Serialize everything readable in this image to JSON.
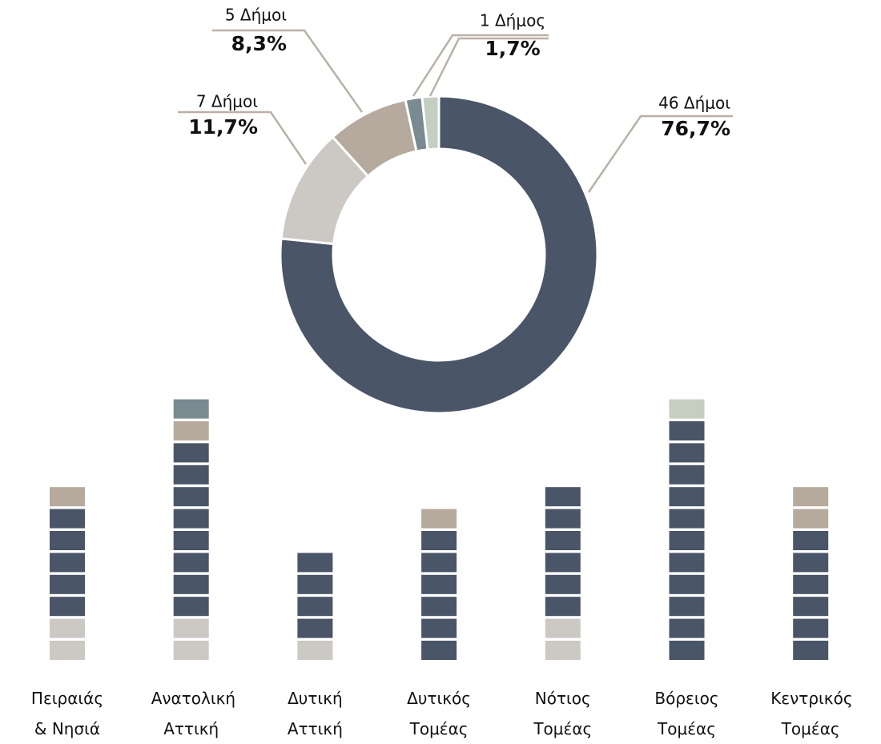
{
  "chart_data": [
    {
      "type": "pie",
      "values": [
        76.7,
        11.7,
        8.3,
        1.7,
        1.7
      ],
      "value_labels": [
        "76,7%",
        "11,7%",
        "8,3%",
        "1,7%",
        null
      ],
      "counts": [
        46,
        7,
        5,
        1,
        1
      ],
      "count_labels": [
        "46 Δήμοι",
        "7 Δήμοι",
        "5 Δήμοι",
        "1 Δήμος",
        null
      ],
      "colors": [
        "#4b5568",
        "#ccc9c4",
        "#b5aa9d",
        "#7a8a91",
        "#c4cfc2"
      ]
    },
    {
      "type": "bar",
      "stacked": true,
      "categories": [
        "Πειραιάς & Νησιά",
        "Ανατολική Αττική",
        "Δυτική Αττική",
        "Δυτικός Τομέας",
        "Νότιος Τομέας",
        "Βόρειος Τομέας",
        "Κεντρικός Τομέας"
      ],
      "series": [
        {
          "color": "#ccc9c4",
          "values": [
            2,
            2,
            1,
            0,
            2,
            0,
            0
          ]
        },
        {
          "color": "#4b5568",
          "values": [
            5,
            8,
            4,
            6,
            6,
            11,
            6
          ]
        },
        {
          "color": "#b5aa9d",
          "values": [
            1,
            1,
            0,
            1,
            0,
            0,
            2
          ]
        },
        {
          "color": "#7a8a91",
          "values": [
            0,
            1,
            0,
            0,
            0,
            0,
            0
          ]
        },
        {
          "color": "#c4cfc2",
          "values": [
            0,
            0,
            0,
            0,
            0,
            1,
            0
          ]
        }
      ]
    }
  ]
}
